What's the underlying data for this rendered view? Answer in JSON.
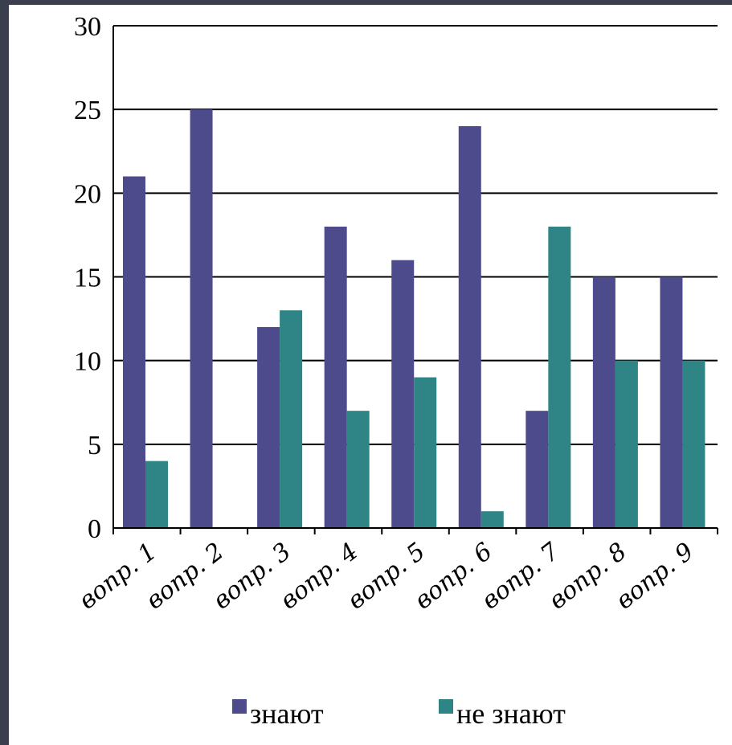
{
  "colors": {
    "background": "#3b3e4d",
    "panel": "#ffffff",
    "series_1": "#4d4b8c",
    "series_2": "#2f8585",
    "gridline": "#000000"
  },
  "chart_data": {
    "type": "bar",
    "title": "",
    "xlabel": "",
    "ylabel": "",
    "categories": [
      "вопр. 1",
      "вопр. 2",
      "вопр. 3",
      "вопр. 4",
      "вопр. 5",
      "вопр. 6",
      "вопр. 7",
      "вопр. 8",
      "вопр. 9"
    ],
    "series": [
      {
        "name": "знают",
        "color": "#4d4b8c",
        "values": [
          21,
          25,
          12,
          18,
          16,
          24,
          7,
          15,
          15
        ]
      },
      {
        "name": "не знают",
        "color": "#2f8585",
        "values": [
          4,
          0,
          13,
          7,
          9,
          1,
          18,
          10,
          10
        ]
      }
    ],
    "ylim": [
      0,
      30
    ],
    "yticks": [
      "0",
      "5",
      "10",
      "15",
      "20",
      "25",
      "30"
    ],
    "grid": true,
    "legend_position": "bottom"
  }
}
